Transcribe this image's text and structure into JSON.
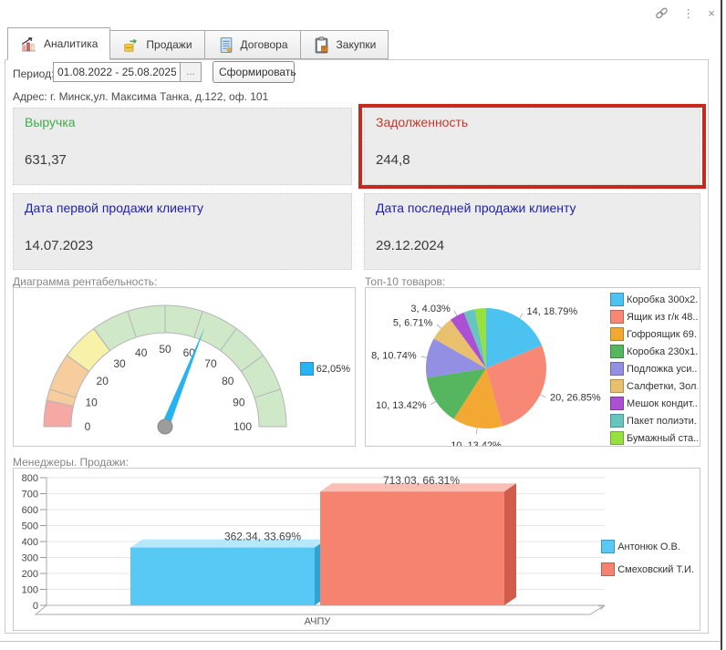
{
  "window": {
    "controls": {
      "link": "link",
      "menu": "⋮",
      "close": "×"
    }
  },
  "tabs": [
    {
      "label": "Аналитика",
      "active": true
    },
    {
      "label": "Продажи",
      "active": false
    },
    {
      "label": "Договора",
      "active": false
    },
    {
      "label": "Закупки",
      "active": false
    }
  ],
  "toolbar": {
    "period_label": "Период:",
    "period_value": "01.08.2022 - 25.08.2025",
    "more_label": "...",
    "generate_label": "Сформировать"
  },
  "address": "Адрес: г. Минск,ул. Максима Танка, д.122, оф. 101",
  "cards": [
    {
      "title": "Выручка",
      "value": "631,37",
      "title_color": "#3fae49",
      "highlighted": false
    },
    {
      "title": "Задолженность",
      "value": "244,8",
      "title_color": "#c03a28",
      "highlighted": true
    },
    {
      "title": "Дата первой продажи клиенту",
      "value": "14.07.2023",
      "title_color": "#2121a8",
      "highlighted": false
    },
    {
      "title": "Дата последней продажи клиенту",
      "value": "29.12.2024",
      "title_color": "#2121a8",
      "highlighted": false
    }
  ],
  "sections": {
    "gauge": "Диаграмма рентабельность:",
    "pie": "Топ-10 товаров:",
    "bar": "Менеджеры. Продажи:"
  },
  "colors": {
    "highlight_border": "#c9281e",
    "card_bg": "#ececec",
    "needle": "#27b3ef"
  },
  "chart_data": [
    {
      "type": "gauge",
      "title": "Диаграмма рентабельность:",
      "min": 0,
      "max": 100,
      "tick_step": 10,
      "value": 62.05,
      "legend_label": "62,05%",
      "needle_color": "#27b3ef",
      "segments": [
        {
          "from": 0,
          "to": 7,
          "color": "#f5a8a4"
        },
        {
          "from": 7,
          "to": 20,
          "color": "#f8cd9e"
        },
        {
          "from": 20,
          "to": 30,
          "color": "#f8f2a8"
        },
        {
          "from": 30,
          "to": 100,
          "color": "#cfe9c8"
        }
      ]
    },
    {
      "type": "pie",
      "title": "Топ-10 товаров:",
      "legend_position": "right",
      "slices": [
        {
          "legend": "Коробка 300х2...",
          "value": 14,
          "pct": 18.79,
          "label": "14, 18.79%",
          "color": "#4cc2f1"
        },
        {
          "legend": "Ящик из г/к 48...",
          "value": 20,
          "pct": 26.85,
          "label": "20, 26.85%",
          "color": "#f68875"
        },
        {
          "legend": "Гофроящик 69...",
          "value": 10,
          "pct": 13.42,
          "label": "10, 13.42%",
          "color": "#f3a833"
        },
        {
          "legend": "Коробка 230х1...",
          "value": 10,
          "pct": 13.42,
          "label": "10, 13.42%",
          "color": "#55b65f"
        },
        {
          "legend": "Подложка уси...",
          "value": 8,
          "pct": 10.74,
          "label": "8, 10.74%",
          "color": "#938fe3"
        },
        {
          "legend": "Салфетки, Зол...",
          "value": 5,
          "pct": 6.71,
          "label": "5, 6.71%",
          "color": "#e9c06e"
        },
        {
          "legend": "Мешок кондит...",
          "value": 3,
          "pct": 4.03,
          "label": "3, 4.03%",
          "color": "#ad4fd4"
        },
        {
          "legend": "Пакет полиэти...",
          "value": 2,
          "pct": 3.02,
          "label": "",
          "color": "#66c6bd"
        },
        {
          "legend": "Бумажный ста...",
          "value": 2,
          "pct": 3.02,
          "label": "",
          "color": "#97e13f"
        }
      ]
    },
    {
      "type": "bar",
      "title": "Менеджеры. Продажи:",
      "categories": [
        "АЧПУ"
      ],
      "ylim": [
        0,
        800
      ],
      "ytick_step": 100,
      "grid": true,
      "legend_position": "right",
      "series": [
        {
          "name": "Антонюк О.В.",
          "value": 362.34,
          "label": "362.34, 33.69%",
          "color": "#58c9f5",
          "top_color": "#b5e8fb",
          "side_color": "#2fa3d3"
        },
        {
          "name": "Смеховский Т.И.",
          "value": 713.03,
          "label": "713.03, 66.31%",
          "color": "#f5836f",
          "top_color": "#f9beb4",
          "side_color": "#d15c4b"
        }
      ]
    }
  ]
}
